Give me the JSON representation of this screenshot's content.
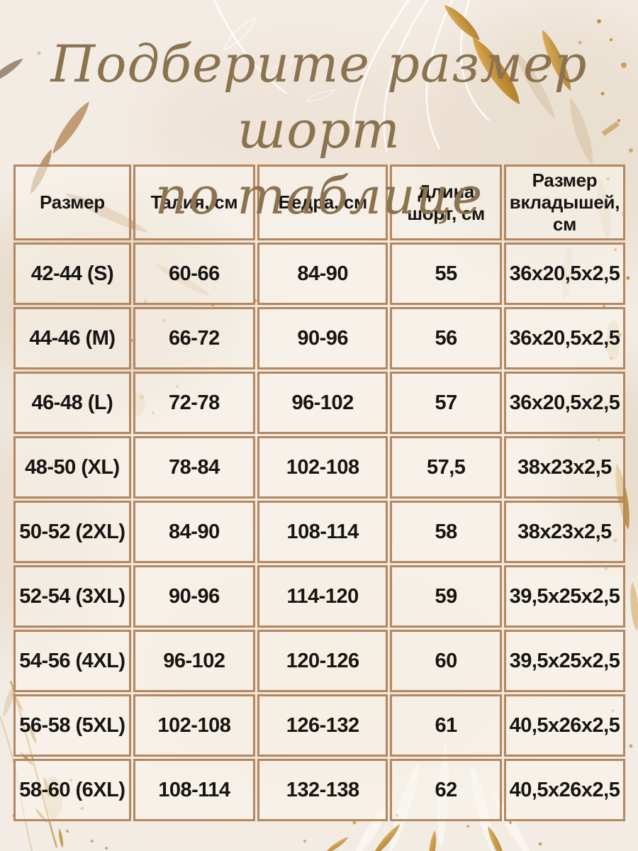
{
  "title": {
    "line1": "Подберите размер шорт",
    "line2": "по таблице"
  },
  "chart_data": {
    "type": "table",
    "title": "Подберите размер шорт по таблице",
    "columns": [
      "Размер",
      "Талия, см",
      "Бедра, см",
      "Длина шорт, см",
      "Размер вкладышей, см"
    ],
    "rows": [
      [
        "42-44 (S)",
        "60-66",
        "84-90",
        "55",
        "36x20,5x2,5"
      ],
      [
        "44-46 (M)",
        "66-72",
        "90-96",
        "56",
        "36x20,5x2,5"
      ],
      [
        "46-48 (L)",
        "72-78",
        "96-102",
        "57",
        "36x20,5x2,5"
      ],
      [
        "48-50 (XL)",
        "78-84",
        "102-108",
        "57,5",
        "38x23x2,5"
      ],
      [
        "50-52 (2XL)",
        "84-90",
        "108-114",
        "58",
        "38x23x2,5"
      ],
      [
        "52-54 (3XL)",
        "90-96",
        "114-120",
        "59",
        "39,5x25x2,5"
      ],
      [
        "54-56 (4XL)",
        "96-102",
        "120-126",
        "60",
        "39,5x25x2,5"
      ],
      [
        "56-58 (5XL)",
        "102-108",
        "126-132",
        "61",
        "40,5x26x2,5"
      ],
      [
        "58-60 (6XL)",
        "108-114",
        "132-138",
        "62",
        "40,5x26x2,5"
      ]
    ]
  },
  "table": {
    "headers_display": [
      "Размер",
      "Талия, см",
      "Бедра, см",
      "Длина\nшорт, см",
      "Размер\nвкладышей,\nсм"
    ]
  },
  "colors": {
    "background": "#f3ece4",
    "table_border": "#b3875f",
    "title_text": "#8c7350",
    "cell_text": "#171513",
    "gold_accent": "#c28f35",
    "beige_leaf": "#d8c3a7"
  },
  "decorations": [
    "white-line-flower-top-center",
    "gold-glitter-leaves-top-right",
    "tan-watercolor-leaves-top-left",
    "gold-branch-sparkles-bottom-left",
    "white-flower-gold-leaves-bottom-center",
    "gold-leaf-speckles-right-edge"
  ]
}
